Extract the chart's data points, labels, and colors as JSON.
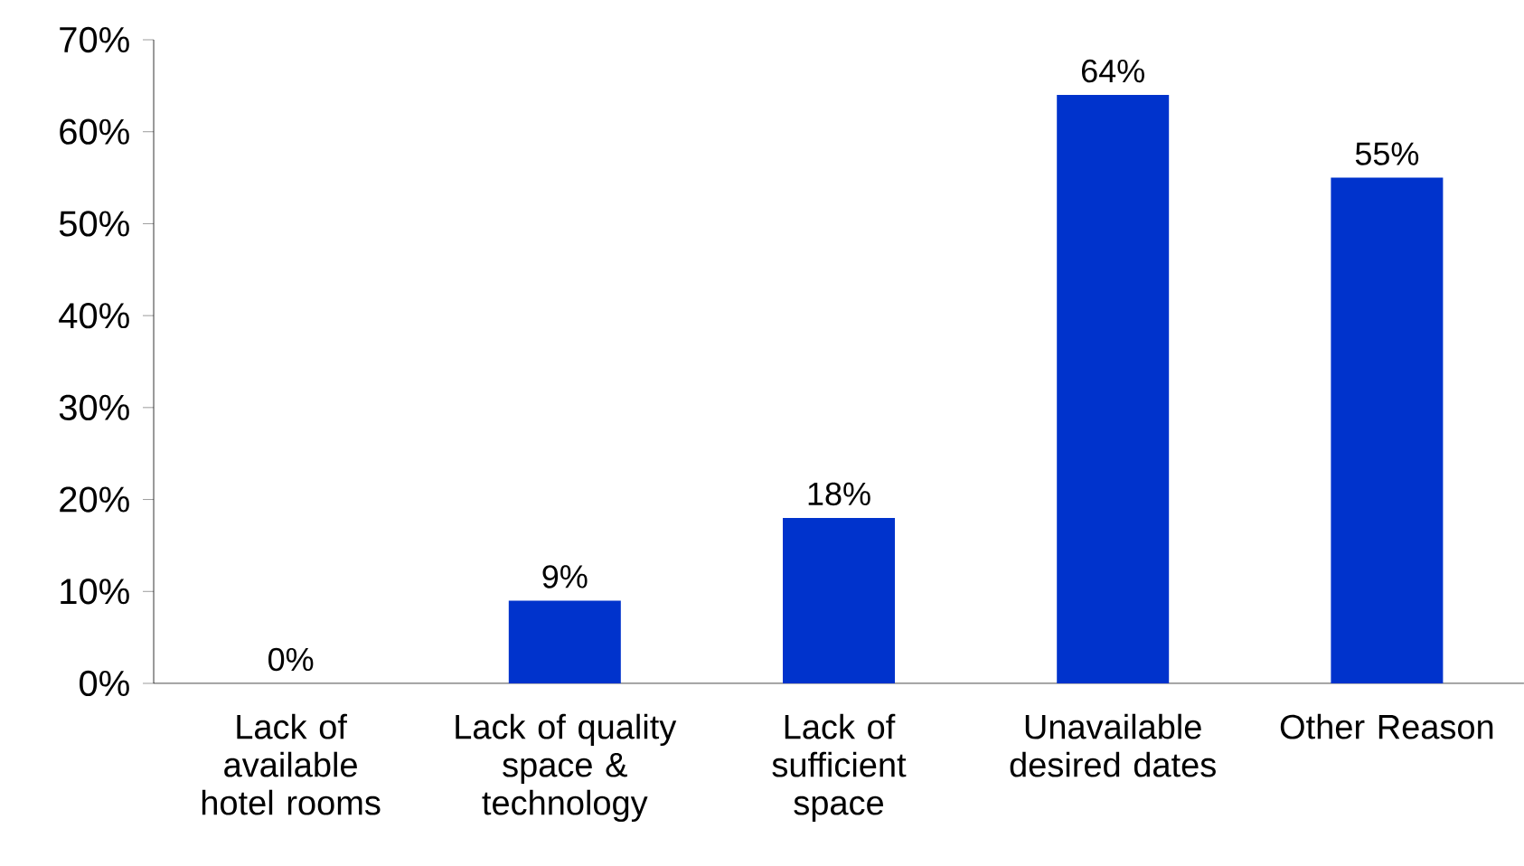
{
  "chart_data": {
    "type": "bar",
    "categories": [
      "Lack of available hotel rooms",
      "Lack of quality space & technology",
      "Lack of sufficient space",
      "Unavailable desired dates",
      "Other Reason"
    ],
    "values": [
      0,
      9,
      18,
      64,
      55
    ],
    "value_labels": [
      "0%",
      "9%",
      "18%",
      "64%",
      "55%"
    ],
    "color": "#0033cc",
    "ylim": [
      0,
      70
    ],
    "yticks": [
      {
        "value": 0,
        "label": "0%"
      },
      {
        "value": 10,
        "label": "10%"
      },
      {
        "value": 20,
        "label": "20%"
      },
      {
        "value": 30,
        "label": "30%"
      },
      {
        "value": 40,
        "label": "40%"
      },
      {
        "value": 50,
        "label": "50%"
      },
      {
        "value": 60,
        "label": "60%"
      },
      {
        "value": 70,
        "label": "70%"
      }
    ],
    "grid": false
  }
}
